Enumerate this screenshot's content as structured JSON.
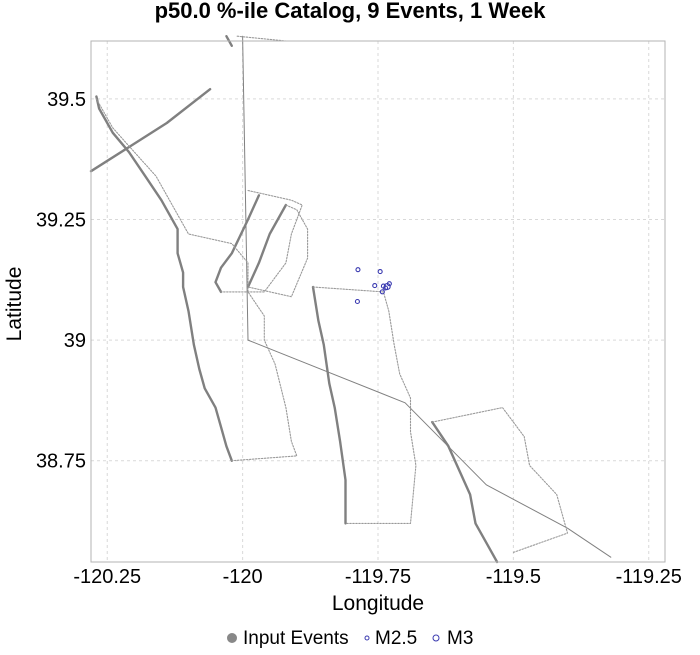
{
  "chart_data": {
    "type": "scatter",
    "title": "p50.0 %-ile Catalog, 9 Events, 1 Week",
    "xlabel": "Longitude",
    "ylabel": "Latitude",
    "xlim": [
      -120.28,
      -119.22
    ],
    "ylim": [
      38.54,
      39.62
    ],
    "xticks": [
      -120.25,
      -120,
      -119.75,
      -119.5,
      -119.25
    ],
    "xtick_labels": [
      "-120.25",
      "-120",
      "-119.75",
      "-119.5",
      "-119.25"
    ],
    "yticks": [
      38.75,
      39,
      39.25,
      39.5
    ],
    "ytick_labels": [
      "38.75",
      "39",
      "39.25",
      "39.5"
    ],
    "grid": true,
    "legend_position": "bottom",
    "colors": {
      "input_events": "#888888",
      "event_marker": "#3a3ab0",
      "fault": "#808080",
      "grid": "#d9d9d9"
    },
    "series": [
      {
        "name": "Input Events",
        "marker": "filled-circle",
        "points": []
      },
      {
        "name": "M2.5",
        "marker": "open-circle",
        "points": [
          [
            -119.787,
            39.146
          ],
          [
            -119.746,
            39.142
          ],
          [
            -119.756,
            39.113
          ],
          [
            -119.74,
            39.112
          ],
          [
            -119.736,
            39.108
          ],
          [
            -119.729,
            39.117
          ],
          [
            -119.742,
            39.1
          ],
          [
            -119.788,
            39.08
          ]
        ]
      },
      {
        "name": "M3",
        "marker": "open-circle",
        "points": [
          [
            -119.733,
            39.111
          ]
        ]
      }
    ],
    "fault_traces": [
      {
        "style": "thick",
        "points": [
          [
            -120.27,
            39.505
          ],
          [
            -120.265,
            39.48
          ],
          [
            -120.24,
            39.43
          ],
          [
            -120.21,
            39.39
          ],
          [
            -120.18,
            39.34
          ],
          [
            -120.15,
            39.29
          ],
          [
            -120.12,
            39.23
          ],
          [
            -120.12,
            39.18
          ],
          [
            -120.11,
            39.14
          ],
          [
            -120.11,
            39.11
          ],
          [
            -120.1,
            39.06
          ],
          [
            -120.09,
            38.99
          ],
          [
            -120.08,
            38.94
          ],
          [
            -120.07,
            38.9
          ],
          [
            -120.05,
            38.86
          ],
          [
            -120.04,
            38.82
          ],
          [
            -120.03,
            38.78
          ],
          [
            -120.02,
            38.75
          ]
        ]
      },
      {
        "style": "thick",
        "points": [
          [
            -120.28,
            39.35
          ],
          [
            -120.21,
            39.4
          ],
          [
            -120.14,
            39.45
          ],
          [
            -120.06,
            39.52
          ]
        ]
      },
      {
        "style": "thick",
        "points": [
          [
            -120.03,
            39.63
          ],
          [
            -120.02,
            39.61
          ]
        ]
      },
      {
        "style": "thick",
        "points": [
          [
            -119.97,
            39.3
          ],
          [
            -119.99,
            39.25
          ],
          [
            -120.02,
            39.18
          ],
          [
            -120.04,
            39.15
          ],
          [
            -120.05,
            39.12
          ],
          [
            -120.04,
            39.1
          ]
        ]
      },
      {
        "style": "thick",
        "points": [
          [
            -119.92,
            39.28
          ],
          [
            -119.95,
            39.22
          ],
          [
            -119.97,
            39.16
          ],
          [
            -119.99,
            39.11
          ]
        ]
      },
      {
        "style": "thick",
        "points": [
          [
            -119.87,
            39.11
          ],
          [
            -119.86,
            39.04
          ],
          [
            -119.85,
            38.99
          ],
          [
            -119.84,
            38.91
          ],
          [
            -119.83,
            38.86
          ],
          [
            -119.82,
            38.79
          ],
          [
            -119.81,
            38.71
          ],
          [
            -119.81,
            38.62
          ]
        ]
      },
      {
        "style": "thick",
        "points": [
          [
            -119.65,
            38.83
          ],
          [
            -119.62,
            38.78
          ],
          [
            -119.6,
            38.73
          ],
          [
            -119.58,
            38.68
          ],
          [
            -119.57,
            38.62
          ],
          [
            -119.55,
            38.58
          ],
          [
            -119.53,
            38.54
          ]
        ]
      },
      {
        "style": "thin",
        "points": [
          [
            -120.0,
            39.63
          ],
          [
            -119.99,
            39.0
          ],
          [
            -119.7,
            38.87
          ],
          [
            -119.55,
            38.7
          ],
          [
            -119.4,
            38.61
          ],
          [
            -119.32,
            38.55
          ]
        ]
      },
      {
        "style": "dotted",
        "points": [
          [
            -120.27,
            39.5
          ],
          [
            -120.24,
            39.44
          ],
          [
            -120.2,
            39.39
          ],
          [
            -120.16,
            39.34
          ],
          [
            -120.13,
            39.28
          ],
          [
            -120.1,
            39.22
          ],
          [
            -120.02,
            39.2
          ],
          [
            -119.99,
            39.16
          ],
          [
            -119.99,
            39.1
          ],
          [
            -119.96,
            39.05
          ],
          [
            -119.96,
            39.0
          ],
          [
            -119.94,
            38.95
          ],
          [
            -119.92,
            38.86
          ],
          [
            -119.91,
            38.79
          ],
          [
            -119.9,
            38.76
          ],
          [
            -120.02,
            38.75
          ]
        ]
      },
      {
        "style": "dotted",
        "points": [
          [
            -119.99,
            39.31
          ],
          [
            -119.91,
            39.29
          ],
          [
            -119.89,
            39.28
          ],
          [
            -119.91,
            39.22
          ],
          [
            -119.92,
            39.16
          ],
          [
            -119.96,
            39.1
          ],
          [
            -120.04,
            39.1
          ]
        ]
      },
      {
        "style": "dotted",
        "points": [
          [
            -119.92,
            39.28
          ],
          [
            -119.9,
            39.27
          ],
          [
            -119.88,
            39.23
          ],
          [
            -119.88,
            39.17
          ],
          [
            -119.91,
            39.09
          ],
          [
            -119.99,
            39.11
          ]
        ]
      },
      {
        "style": "dotted",
        "points": [
          [
            -119.87,
            39.11
          ],
          [
            -119.74,
            39.1
          ],
          [
            -119.73,
            39.06
          ],
          [
            -119.72,
            38.99
          ],
          [
            -119.71,
            38.93
          ],
          [
            -119.69,
            38.88
          ],
          [
            -119.69,
            38.81
          ],
          [
            -119.68,
            38.74
          ],
          [
            -119.69,
            38.62
          ],
          [
            -119.81,
            38.62
          ]
        ]
      },
      {
        "style": "dotted",
        "points": [
          [
            -119.65,
            38.83
          ],
          [
            -119.52,
            38.86
          ],
          [
            -119.48,
            38.8
          ],
          [
            -119.47,
            38.74
          ],
          [
            -119.42,
            38.68
          ],
          [
            -119.41,
            38.64
          ],
          [
            -119.4,
            38.6
          ],
          [
            -119.5,
            38.56
          ]
        ]
      },
      {
        "style": "dotted",
        "points": [
          [
            -120.01,
            39.63
          ],
          [
            -119.92,
            39.62
          ]
        ]
      }
    ]
  },
  "legend": {
    "items": [
      {
        "label": "Input Events",
        "marker": "filled",
        "color": "#888888"
      },
      {
        "label": "M2.5",
        "marker": "open-small",
        "color": "#3a3ab0"
      },
      {
        "label": "M3",
        "marker": "open",
        "color": "#3a3ab0"
      }
    ]
  }
}
